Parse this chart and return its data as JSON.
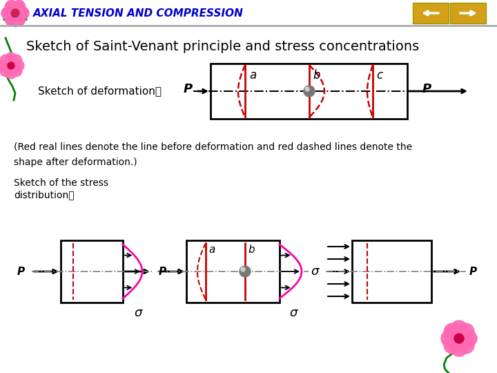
{
  "bg_color": "#ffffff",
  "title_text": "Sketch of Saint-Venant principle and stress concentrations",
  "header_text": "AXIAL TENSION AND COMPRESSION",
  "header_color": "#0000cc",
  "title_color": "#000000",
  "box_color": "#000000",
  "red_color": "#cc0000",
  "arrow_color": "#000000",
  "pink_color": "#ff00aa",
  "label_a": "a",
  "label_b": "b",
  "label_c": "c",
  "label_P": "P",
  "label_sigma": "σ",
  "note_line1": "(Red real lines denote the line before deformation and red dashed lines denote the",
  "note_line2": "shape after deformation.)",
  "sketch_stress_label": "Sketch of the stress",
  "sketch_stress_label2": "distribution：",
  "sketch_deform_label": "Sketch of deformation："
}
